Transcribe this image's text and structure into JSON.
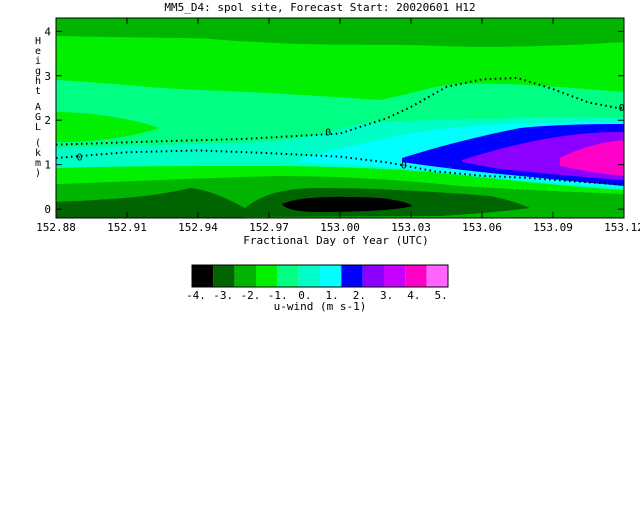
{
  "title": "MM5_D4: spol site,  Forecast Start: 20020601 H12",
  "chart_data": {
    "type": "heatmap",
    "title": "MM5_D4: spol site,  Forecast Start: 20020601 H12",
    "xlabel": "Fractional Day of Year (UTC)",
    "ylabel": "Height AGL (km)",
    "xlim": [
      152.88,
      153.12
    ],
    "ylim": [
      -0.2,
      4.3
    ],
    "x_ticks": [
      152.88,
      152.91,
      152.94,
      152.97,
      153.0,
      153.03,
      153.06,
      153.09,
      153.12
    ],
    "x_tick_labels": [
      "152.88",
      "152.91",
      "152.94",
      "152.97",
      "153.00",
      "153.03",
      "153.06",
      "153.09",
      "153.12"
    ],
    "y_ticks": [
      0,
      1,
      2,
      3,
      4
    ],
    "y_tick_labels": [
      "0",
      "1",
      "2",
      "3",
      "4"
    ],
    "contour_label": "0",
    "zero_contour_upper": [
      [
        152.88,
        1.45
      ],
      [
        152.92,
        1.52
      ],
      [
        152.96,
        1.58
      ],
      [
        152.98,
        1.64
      ],
      [
        153.0,
        1.7
      ],
      [
        153.02,
        2.05
      ],
      [
        153.03,
        2.3
      ],
      [
        153.045,
        2.75
      ],
      [
        153.06,
        2.92
      ],
      [
        153.075,
        2.95
      ],
      [
        153.09,
        2.7
      ],
      [
        153.105,
        2.4
      ],
      [
        153.12,
        2.25
      ]
    ],
    "zero_contour_lower": [
      [
        152.88,
        1.15
      ],
      [
        152.91,
        1.28
      ],
      [
        152.94,
        1.32
      ],
      [
        152.97,
        1.26
      ],
      [
        153.0,
        1.18
      ],
      [
        153.02,
        1.05
      ],
      [
        153.04,
        0.85
      ],
      [
        153.06,
        0.75
      ],
      [
        153.08,
        0.7
      ],
      [
        153.1,
        0.62
      ],
      [
        153.12,
        0.55
      ]
    ],
    "colorbar": {
      "label": "u-wind (m s-1)",
      "colors": [
        "#000000",
        "#006400",
        "#00b400",
        "#00f000",
        "#00ff82",
        "#00ffc8",
        "#00ffff",
        "#0000ff",
        "#8c00ff",
        "#c800ff",
        "#ff00c8",
        "#ff64ff"
      ],
      "tick_labels": [
        "-4.",
        "-3.",
        "-2.",
        "-1.",
        "0.",
        "1.",
        "2.",
        "3.",
        "4.",
        "5."
      ]
    }
  }
}
